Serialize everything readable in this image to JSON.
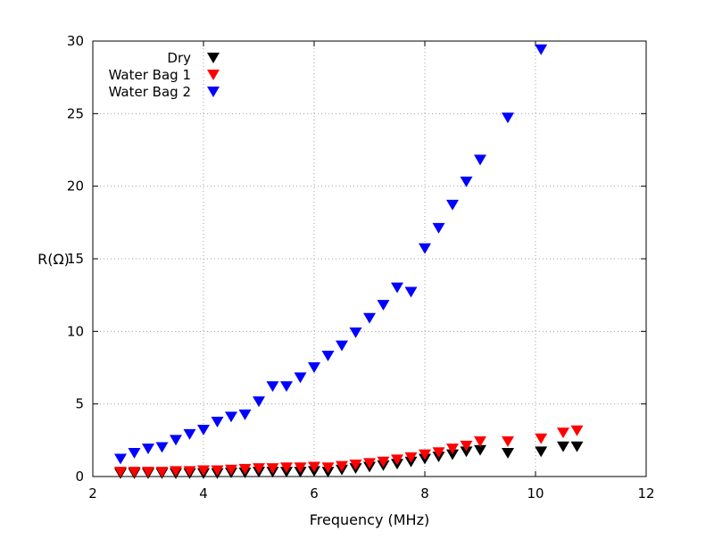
{
  "chart_data": {
    "type": "scatter",
    "title": "",
    "xlabel": "Frequency (MHz)",
    "ylabel": "R(Ω)",
    "xlim": [
      2,
      12
    ],
    "ylim": [
      0,
      30
    ],
    "xticks": [
      2,
      4,
      6,
      8,
      10,
      12
    ],
    "yticks": [
      0,
      5,
      10,
      15,
      20,
      25,
      30
    ],
    "grid": true,
    "legend_position": "top-left",
    "marker": "down-triangle",
    "series": [
      {
        "name": "Dry",
        "color": "#000000",
        "x": [
          2.5,
          2.75,
          3.0,
          3.25,
          3.5,
          3.75,
          4.0,
          4.25,
          4.5,
          4.75,
          5.0,
          5.25,
          5.5,
          5.75,
          6.0,
          6.25,
          6.5,
          6.75,
          7.0,
          7.25,
          7.5,
          7.75,
          8.0,
          8.25,
          8.5,
          8.75,
          9.0,
          9.5,
          10.1,
          10.5,
          10.75
        ],
        "y": [
          0.2,
          0.2,
          0.2,
          0.2,
          0.2,
          0.2,
          0.2,
          0.2,
          0.25,
          0.25,
          0.3,
          0.3,
          0.3,
          0.3,
          0.35,
          0.3,
          0.45,
          0.55,
          0.65,
          0.75,
          0.85,
          1.0,
          1.2,
          1.35,
          1.5,
          1.7,
          1.8,
          1.6,
          1.7,
          2.05,
          2.05
        ]
      },
      {
        "name": "Water Bag 1",
        "color": "#ff0000",
        "x": [
          2.5,
          2.75,
          3.0,
          3.25,
          3.5,
          3.75,
          4.0,
          4.25,
          4.5,
          4.75,
          5.0,
          5.25,
          5.5,
          5.75,
          6.0,
          6.25,
          6.5,
          6.75,
          7.0,
          7.25,
          7.5,
          7.75,
          8.0,
          8.25,
          8.5,
          8.75,
          9.0,
          9.5,
          10.1,
          10.5,
          10.75
        ],
        "y": [
          0.3,
          0.3,
          0.3,
          0.3,
          0.35,
          0.35,
          0.4,
          0.4,
          0.45,
          0.5,
          0.55,
          0.55,
          0.6,
          0.6,
          0.65,
          0.6,
          0.7,
          0.8,
          0.9,
          1.0,
          1.15,
          1.3,
          1.5,
          1.65,
          1.9,
          2.1,
          2.4,
          2.4,
          2.6,
          3.0,
          3.15
        ]
      },
      {
        "name": "Water Bag 2",
        "color": "#0000ff",
        "x": [
          2.5,
          2.75,
          3.0,
          3.25,
          3.5,
          3.75,
          4.0,
          4.25,
          4.5,
          4.75,
          5.0,
          5.25,
          5.5,
          5.75,
          6.0,
          6.25,
          6.5,
          6.75,
          7.0,
          7.25,
          7.5,
          7.75,
          8.0,
          8.25,
          8.5,
          8.75,
          9.0,
          9.5,
          10.1
        ],
        "y": [
          1.2,
          1.6,
          1.9,
          2.0,
          2.5,
          2.9,
          3.2,
          3.75,
          4.1,
          4.25,
          5.15,
          6.2,
          6.2,
          6.8,
          7.5,
          8.3,
          9.0,
          9.9,
          10.9,
          11.8,
          13.0,
          12.7,
          15.7,
          17.1,
          18.7,
          20.3,
          21.8,
          24.7,
          29.4
        ]
      }
    ]
  }
}
